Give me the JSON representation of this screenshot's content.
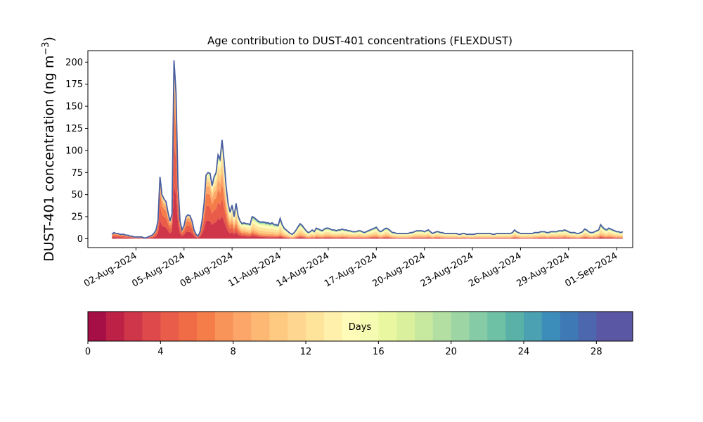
{
  "chart_data": {
    "type": "area",
    "title": "Age contribution to DUST-401 concentrations (FLEXDUST)",
    "ylabel": "DUST-401 concentration (ng m",
    "ylabel_sup": "−3",
    "ylabel_close": ")",
    "xlabel": "",
    "ylim": [
      -10,
      213
    ],
    "yticks": [
      0,
      25,
      50,
      75,
      100,
      125,
      150,
      175,
      200
    ],
    "xlim": [
      "2024-07-30T00:00",
      "2024-09-02T00:00"
    ],
    "xticks": [
      "02-Aug-2024",
      "05-Aug-2024",
      "08-Aug-2024",
      "11-Aug-2024",
      "14-Aug-2024",
      "17-Aug-2024",
      "20-Aug-2024",
      "23-Aug-2024",
      "26-Aug-2024",
      "29-Aug-2024",
      "01-Sep-2024"
    ],
    "grid": false,
    "start_time": "2024-07-31T12:00",
    "step_hours": 3,
    "total": [
      5,
      7,
      6,
      6,
      5,
      5,
      5,
      4,
      4,
      3,
      3,
      2,
      2,
      2,
      2,
      2,
      1,
      1,
      2,
      3,
      4,
      6,
      10,
      20,
      70,
      50,
      45,
      42,
      30,
      20,
      28,
      202,
      165,
      60,
      20,
      10,
      15,
      25,
      27,
      26,
      20,
      10,
      5,
      3,
      8,
      20,
      40,
      72,
      75,
      74,
      60,
      70,
      75,
      95,
      90,
      112,
      88,
      60,
      40,
      30,
      38,
      25,
      40,
      26,
      20,
      17,
      18,
      17,
      17,
      16,
      25,
      24,
      22,
      20,
      19,
      19,
      19,
      18,
      18,
      17,
      18,
      16,
      16,
      15,
      23,
      16,
      12,
      10,
      8,
      6,
      5,
      7,
      10,
      14,
      17,
      15,
      12,
      9,
      7,
      8,
      10,
      8,
      12,
      11,
      10,
      9,
      11,
      12,
      12,
      11,
      10,
      10,
      9,
      10,
      10,
      11,
      10,
      10,
      9,
      9,
      8,
      8,
      8,
      9,
      9,
      8,
      7,
      8,
      9,
      10,
      11,
      12,
      13,
      10,
      8,
      9,
      11,
      12,
      11,
      9,
      7,
      7,
      6,
      6,
      6,
      6,
      6,
      6,
      6,
      7,
      7,
      8,
      9,
      9,
      9,
      9,
      8,
      9,
      10,
      8,
      6,
      7,
      8,
      8,
      7,
      7,
      6,
      6,
      6,
      6,
      6,
      6,
      6,
      5,
      5,
      6,
      6,
      5,
      5,
      5,
      5,
      5,
      6,
      6,
      6,
      6,
      6,
      6,
      6,
      6,
      5,
      5,
      6,
      6,
      6,
      6,
      6,
      6,
      6,
      6,
      7,
      10,
      8,
      7,
      6,
      6,
      6,
      6,
      6,
      6,
      6,
      7,
      7,
      7,
      8,
      8,
      8,
      7,
      7,
      8,
      8,
      8,
      8,
      9,
      9,
      9,
      10,
      9,
      8,
      7,
      7,
      7,
      6,
      6,
      7,
      8,
      11,
      10,
      8,
      7,
      7,
      8,
      9,
      10,
      16,
      13,
      11,
      10,
      12,
      11,
      10,
      9,
      8,
      8,
      7,
      8
    ],
    "bands": [
      {
        "age_days": 2,
        "fraction_early": 0.3,
        "fraction_late": 0.1
      },
      {
        "age_days": 4,
        "fraction_early": 0.25,
        "fraction_late": 0.05
      },
      {
        "age_days": 6,
        "fraction_early": 0.2,
        "fraction_late": 0.05
      },
      {
        "age_days": 8,
        "fraction_early": 0.12,
        "fraction_late": 0.1
      },
      {
        "age_days": 10,
        "fraction_early": 0.06,
        "fraction_late": 0.15
      },
      {
        "age_days": 12,
        "fraction_early": 0.04,
        "fraction_late": 0.2
      },
      {
        "age_days": 14,
        "fraction_early": 0.02,
        "fraction_late": 0.15
      },
      {
        "age_days": 16,
        "fraction_early": 0.01,
        "fraction_late": 0.08
      },
      {
        "age_days": 20,
        "fraction_early": 0.0,
        "fraction_late": 0.06
      },
      {
        "age_days": 24,
        "fraction_early": 0.0,
        "fraction_late": 0.04
      },
      {
        "age_days": 28,
        "fraction_early": 0.0,
        "fraction_late": 0.02
      }
    ],
    "colorbar": {
      "label": "Days",
      "ticks": [
        0,
        4,
        8,
        12,
        16,
        20,
        24,
        28
      ],
      "vmin": 0,
      "vmax": 30,
      "colors": [
        "#a50f45",
        "#bd2246",
        "#cf3649",
        "#de4a4b",
        "#e85c49",
        "#ef6c46",
        "#f57d4a",
        "#f8935a",
        "#fca769",
        "#fdb874",
        "#fec980",
        "#fed68f",
        "#fee39b",
        "#fff0ab",
        "#fffbb9",
        "#f5fbb0",
        "#eaf7a1",
        "#daf09c",
        "#c6e89f",
        "#b3e0a2",
        "#9dd6a4",
        "#85cca6",
        "#6ec1a5",
        "#5ab1a8",
        "#4ba0b1",
        "#3d8dbb",
        "#3e79b6",
        "#4c67ae",
        "#5a57a5"
      ]
    },
    "envelope_color": "#4a5fa0"
  }
}
